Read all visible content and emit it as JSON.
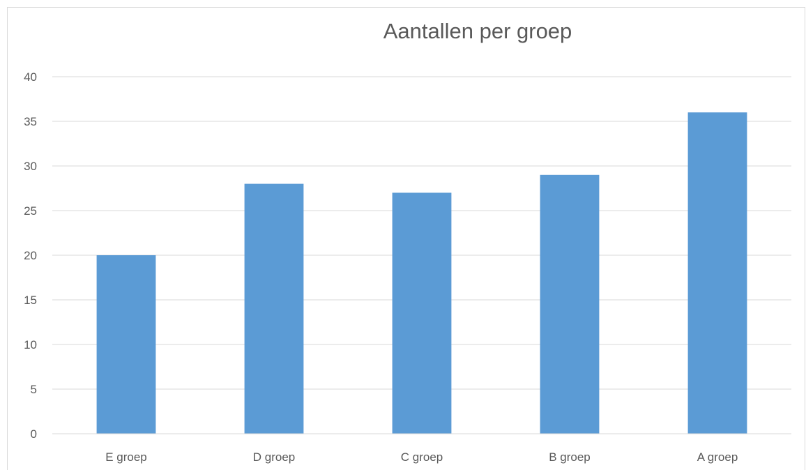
{
  "chart_data": {
    "type": "bar",
    "title": "Aantallen per groep",
    "categories": [
      "E groep",
      "D groep",
      "C groep",
      "B groep",
      "A groep"
    ],
    "values": [
      20,
      28,
      27,
      29,
      36
    ],
    "ylim": [
      0,
      40
    ],
    "yticks": [
      0,
      5,
      10,
      15,
      20,
      25,
      30,
      35,
      40
    ],
    "grid": true,
    "bar_color": "#5b9bd5",
    "legend": "none"
  }
}
